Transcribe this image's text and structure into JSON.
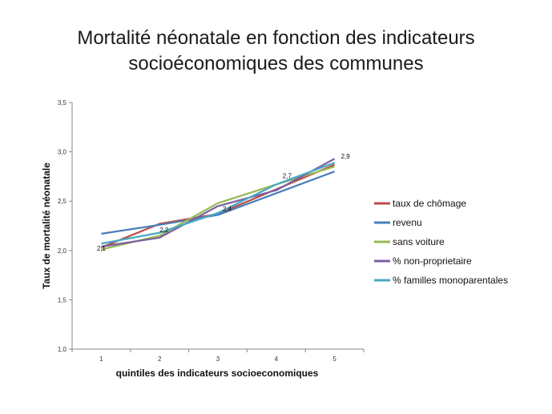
{
  "title_line1": "Mortalité néonatale en fonction des indicateurs",
  "title_line2": "socioéconomiques des communes",
  "chart_data": {
    "type": "line",
    "xlabel": "quintiles des indicateurs socioeconomiques",
    "ylabel": "Taux de mortalité néonatale",
    "categories": [
      "1",
      "2",
      "3",
      "4",
      "5"
    ],
    "ylim": [
      1.0,
      3.5
    ],
    "yticks": [
      "1,0",
      "1,5",
      "2,0",
      "2,5",
      "3,0",
      "3,5"
    ],
    "grid": false,
    "legend_position": "right",
    "series": [
      {
        "name": "taux de chômage",
        "color": "#be4b48",
        "values": [
          2.03,
          2.27,
          2.37,
          2.62,
          2.87
        ]
      },
      {
        "name": "revenu",
        "color": "#4a7ebb",
        "values": [
          2.17,
          2.26,
          2.36,
          2.58,
          2.8
        ]
      },
      {
        "name": "sans voiture",
        "color": "#98b954",
        "values": [
          2.01,
          2.15,
          2.48,
          2.67,
          2.85
        ]
      },
      {
        "name": "% non-proprietaire",
        "color": "#7d60a0",
        "values": [
          2.04,
          2.13,
          2.45,
          2.61,
          2.93
        ]
      },
      {
        "name": "% familles monoparentales",
        "color": "#46aac5",
        "values": [
          2.07,
          2.18,
          2.38,
          2.67,
          2.89
        ]
      }
    ],
    "data_labels": [
      {
        "x": "1",
        "y": 2.0,
        "text": "2,1"
      },
      {
        "x": "2",
        "y": 2.2,
        "text": "2,2"
      },
      {
        "x": "3",
        "y": 2.4,
        "text": "2,4"
      },
      {
        "x": "4",
        "y": 2.7,
        "text": "2,7"
      },
      {
        "x": "5",
        "y": 2.9,
        "text": "2,9"
      }
    ]
  }
}
